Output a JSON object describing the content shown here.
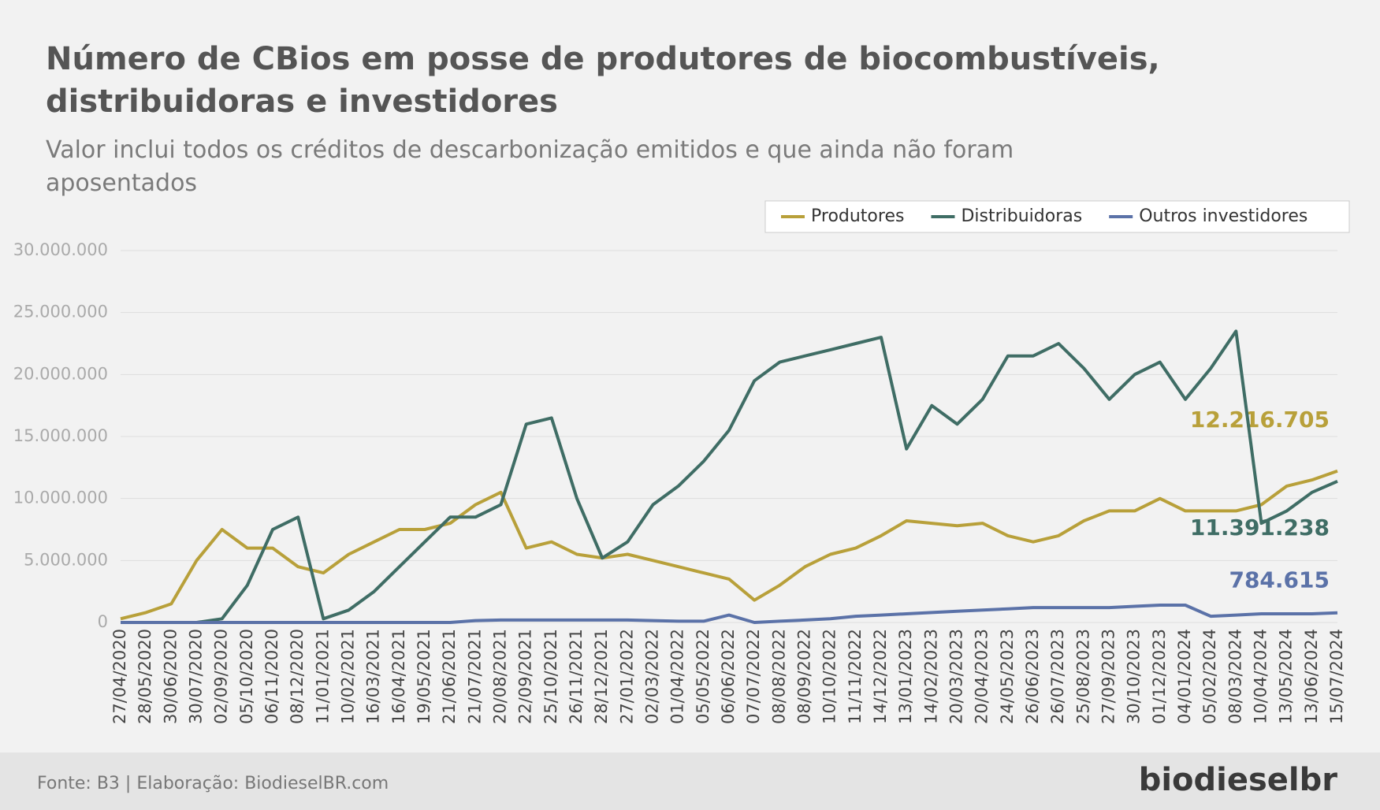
{
  "chart_data": {
    "type": "line",
    "title": "Número de CBios em posse de produtores de biocombustíveis, distribuidoras e investidores",
    "subtitle": "Valor inclui todos os créditos de descarbonização emitidos e que ainda não foram aposentados",
    "source": "Fonte: B3 | Elaboração: BiodieselBR.com",
    "brand": "biodieselbr",
    "legend": "top-right",
    "grid": true,
    "categories": [
      "27/04/2020",
      "28/05/2020",
      "30/06/2020",
      "30/07/2020",
      "02/09/2020",
      "05/10/2020",
      "06/11/2020",
      "08/12/2020",
      "11/01/2021",
      "10/02/2021",
      "16/03/2021",
      "16/04/2021",
      "19/05/2021",
      "21/06/2021",
      "21/07/2021",
      "20/08/2021",
      "22/09/2021",
      "25/10/2021",
      "26/11/2021",
      "28/12/2021",
      "27/01/2022",
      "02/03/2022",
      "01/04/2022",
      "05/05/2022",
      "06/06/2022",
      "07/07/2022",
      "08/08/2022",
      "08/09/2022",
      "10/10/2022",
      "11/11/2022",
      "14/12/2022",
      "13/01/2023",
      "14/02/2023",
      "20/03/2023",
      "20/04/2023",
      "24/05/2023",
      "26/06/2023",
      "26/07/2023",
      "25/08/2023",
      "27/09/2023",
      "30/10/2023",
      "01/12/2023",
      "04/01/2024",
      "05/02/2024",
      "08/03/2024",
      "10/04/2024",
      "13/05/2024",
      "13/06/2024",
      "15/07/2024"
    ],
    "ylim": [
      0,
      30000000
    ],
    "yticks": [
      0,
      {
        "value": 5000000,
        "label": "5.000.000"
      },
      {
        "value": 10000000,
        "label": "10.000.000"
      },
      {
        "value": 15000000,
        "label": "15.000.000"
      },
      {
        "value": 20000000,
        "label": "20.000.000"
      },
      {
        "value": 25000000,
        "label": "25.000.000"
      },
      {
        "value": 30000000,
        "label": "30.000.000"
      }
    ],
    "series": [
      {
        "name": "Produtores",
        "color": "#b8a03a",
        "values": [
          300000,
          800000,
          1500000,
          5000000,
          7500000,
          6000000,
          6000000,
          4500000,
          4000000,
          5500000,
          6500000,
          7500000,
          7500000,
          8000000,
          9500000,
          10500000,
          6000000,
          6500000,
          5500000,
          5200000,
          5500000,
          5000000,
          4500000,
          4000000,
          3500000,
          1800000,
          3000000,
          4500000,
          5500000,
          6000000,
          7000000,
          8200000,
          8000000,
          7800000,
          8000000,
          7000000,
          6500000,
          7000000,
          8200000,
          9000000,
          9000000,
          10000000,
          9000000,
          9000000,
          9000000,
          9500000,
          11000000,
          11500000,
          12216705
        ],
        "value_labels": [
          null,
          null,
          null,
          null,
          null,
          null,
          null,
          null,
          null,
          null,
          null,
          null,
          null,
          null,
          null,
          null,
          null,
          null,
          null,
          null,
          null,
          null,
          null,
          null,
          null,
          null,
          null,
          null,
          null,
          null,
          null,
          null,
          null,
          null,
          null,
          null,
          null,
          null,
          null,
          null,
          null,
          null,
          null,
          null,
          null,
          null,
          null,
          null,
          "12.216.705"
        ]
      },
      {
        "name": "Distribuidoras",
        "color": "#3f6d65",
        "values": [
          0,
          0,
          0,
          0,
          300000,
          3000000,
          7500000,
          8500000,
          300000,
          1000000,
          2500000,
          4500000,
          6500000,
          8500000,
          8500000,
          9500000,
          16000000,
          16500000,
          10000000,
          5200000,
          6500000,
          9500000,
          11000000,
          13000000,
          15500000,
          19500000,
          21000000,
          21500000,
          22000000,
          22500000,
          23000000,
          14000000,
          17500000,
          16000000,
          18000000,
          21500000,
          21500000,
          22500000,
          20500000,
          18000000,
          20000000,
          21000000,
          18000000,
          20500000,
          23500000,
          8000000,
          9000000,
          10500000,
          11391238
        ],
        "value_labels": [
          null,
          null,
          null,
          null,
          null,
          null,
          null,
          null,
          null,
          null,
          null,
          null,
          null,
          null,
          null,
          null,
          null,
          null,
          null,
          null,
          null,
          null,
          null,
          null,
          null,
          null,
          null,
          null,
          null,
          null,
          null,
          null,
          null,
          null,
          null,
          null,
          null,
          null,
          null,
          null,
          null,
          null,
          null,
          null,
          null,
          null,
          null,
          null,
          "11.391.238"
        ]
      },
      {
        "name": "Outros investidores",
        "color": "#5b72a8",
        "values": [
          0,
          0,
          0,
          0,
          0,
          0,
          0,
          0,
          0,
          0,
          0,
          0,
          0,
          0,
          150000,
          200000,
          200000,
          200000,
          200000,
          200000,
          200000,
          150000,
          100000,
          100000,
          600000,
          0,
          100000,
          200000,
          300000,
          500000,
          600000,
          700000,
          800000,
          900000,
          1000000,
          1100000,
          1200000,
          1200000,
          1200000,
          1200000,
          1300000,
          1400000,
          1400000,
          500000,
          600000,
          700000,
          700000,
          700000,
          784615
        ],
        "value_labels": [
          null,
          null,
          null,
          null,
          null,
          null,
          null,
          null,
          null,
          null,
          null,
          null,
          null,
          null,
          null,
          null,
          null,
          null,
          null,
          null,
          null,
          null,
          null,
          null,
          null,
          null,
          null,
          null,
          null,
          null,
          null,
          null,
          null,
          null,
          null,
          null,
          null,
          null,
          null,
          null,
          null,
          null,
          null,
          null,
          null,
          null,
          null,
          null,
          "784.615"
        ]
      }
    ]
  }
}
